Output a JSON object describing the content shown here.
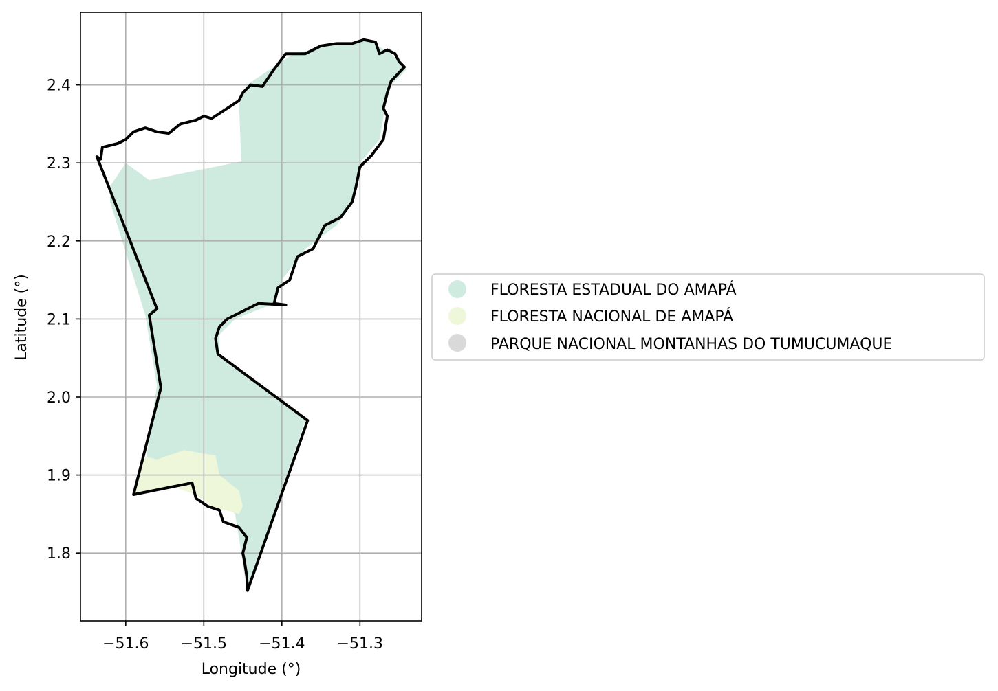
{
  "chart_data": {
    "type": "map",
    "xlabel": "Longitude (°)",
    "ylabel": "Latitude (°)",
    "xlim": [
      -51.658,
      -51.221
    ],
    "ylim": [
      1.713,
      2.493
    ],
    "xticks": [
      -51.6,
      -51.5,
      -51.4,
      -51.3
    ],
    "yticks": [
      1.8,
      1.9,
      2.0,
      2.1,
      2.2,
      2.3,
      2.4
    ],
    "xtick_labels": [
      "−51.6",
      "−51.5",
      "−51.4",
      "−51.3"
    ],
    "ytick_labels": [
      "1.8",
      "1.9",
      "2.0",
      "2.1",
      "2.2",
      "2.3",
      "2.4"
    ],
    "grid": true,
    "legend_position": "right",
    "legend": [
      {
        "label": "FLORESTA ESTADUAL DO AMAPÁ",
        "color": "#cfebdf"
      },
      {
        "label": "FLORESTA NACIONAL DE AMAPÁ",
        "color": "#eef7da"
      },
      {
        "label": "PARQUE NACIONAL MONTANHAS DO TUMUCUMAQUE",
        "color": "#d9d9d9"
      }
    ],
    "areas": [
      {
        "name": "FLORESTA ESTADUAL DO AMAPÁ",
        "color": "#cfebdf",
        "coords": [
          [
            -51.62,
            2.27
          ],
          [
            -51.6,
            2.3
          ],
          [
            -51.57,
            2.278
          ],
          [
            -51.452,
            2.302
          ],
          [
            -51.455,
            2.378
          ],
          [
            -51.445,
            2.4
          ],
          [
            -51.385,
            2.44
          ],
          [
            -51.34,
            2.45
          ],
          [
            -51.29,
            2.458
          ],
          [
            -51.26,
            2.44
          ],
          [
            -51.24,
            2.42
          ],
          [
            -51.26,
            2.4
          ],
          [
            -51.268,
            2.37
          ],
          [
            -51.275,
            2.33
          ],
          [
            -51.3,
            2.3
          ],
          [
            -51.31,
            2.25
          ],
          [
            -51.33,
            2.22
          ],
          [
            -51.37,
            2.19
          ],
          [
            -51.4,
            2.15
          ],
          [
            -51.41,
            2.12
          ],
          [
            -51.46,
            2.1
          ],
          [
            -51.48,
            2.08
          ],
          [
            -51.48,
            2.055
          ],
          [
            -51.37,
            1.97
          ],
          [
            -51.445,
            1.752
          ],
          [
            -51.455,
            1.82
          ],
          [
            -51.46,
            1.85
          ],
          [
            -51.49,
            1.88
          ],
          [
            -51.54,
            1.885
          ],
          [
            -51.58,
            1.878
          ],
          [
            -51.56,
            2.015
          ],
          [
            -51.575,
            2.105
          ],
          [
            -51.62,
            2.25
          ]
        ]
      },
      {
        "name": "FLORESTA NACIONAL DE AMAPÁ",
        "color": "#eef7da",
        "coords": [
          [
            -51.59,
            1.875
          ],
          [
            -51.58,
            1.925
          ],
          [
            -51.56,
            1.92
          ],
          [
            -51.525,
            1.932
          ],
          [
            -51.485,
            1.925
          ],
          [
            -51.48,
            1.9
          ],
          [
            -51.455,
            1.88
          ],
          [
            -51.45,
            1.86
          ],
          [
            -51.455,
            1.85
          ],
          [
            -51.49,
            1.86
          ],
          [
            -51.51,
            1.875
          ],
          [
            -51.54,
            1.885
          ]
        ]
      }
    ],
    "boundary": [
      [
        -51.637,
        2.308
      ],
      [
        -51.632,
        2.305
      ],
      [
        -51.63,
        2.32
      ],
      [
        -51.61,
        2.325
      ],
      [
        -51.6,
        2.33
      ],
      [
        -51.59,
        2.34
      ],
      [
        -51.575,
        2.345
      ],
      [
        -51.56,
        2.34
      ],
      [
        -51.545,
        2.338
      ],
      [
        -51.53,
        2.35
      ],
      [
        -51.51,
        2.355
      ],
      [
        -51.5,
        2.36
      ],
      [
        -51.49,
        2.357
      ],
      [
        -51.47,
        2.37
      ],
      [
        -51.455,
        2.38
      ],
      [
        -51.45,
        2.39
      ],
      [
        -51.44,
        2.4
      ],
      [
        -51.425,
        2.398
      ],
      [
        -51.41,
        2.42
      ],
      [
        -51.395,
        2.44
      ],
      [
        -51.37,
        2.44
      ],
      [
        -51.35,
        2.45
      ],
      [
        -51.33,
        2.453
      ],
      [
        -51.31,
        2.453
      ],
      [
        -51.295,
        2.458
      ],
      [
        -51.28,
        2.455
      ],
      [
        -51.275,
        2.44
      ],
      [
        -51.265,
        2.445
      ],
      [
        -51.255,
        2.44
      ],
      [
        -51.25,
        2.43
      ],
      [
        -51.243,
        2.423
      ],
      [
        -51.26,
        2.405
      ],
      [
        -51.265,
        2.39
      ],
      [
        -51.27,
        2.37
      ],
      [
        -51.265,
        2.36
      ],
      [
        -51.27,
        2.33
      ],
      [
        -51.285,
        2.31
      ],
      [
        -51.3,
        2.295
      ],
      [
        -51.305,
        2.27
      ],
      [
        -51.31,
        2.25
      ],
      [
        -51.325,
        2.23
      ],
      [
        -51.345,
        2.22
      ],
      [
        -51.36,
        2.19
      ],
      [
        -51.38,
        2.18
      ],
      [
        -51.39,
        2.15
      ],
      [
        -51.405,
        2.14
      ],
      [
        -51.41,
        2.12
      ],
      [
        -51.395,
        2.118
      ],
      [
        -51.43,
        2.12
      ],
      [
        -51.45,
        2.11
      ],
      [
        -51.47,
        2.1
      ],
      [
        -51.48,
        2.09
      ],
      [
        -51.485,
        2.075
      ],
      [
        -51.482,
        2.055
      ],
      [
        -51.367,
        1.97
      ],
      [
        -51.444,
        1.752
      ],
      [
        -51.445,
        1.77
      ],
      [
        -51.448,
        1.79
      ],
      [
        -51.45,
        1.8
      ],
      [
        -51.445,
        1.82
      ],
      [
        -51.455,
        1.833
      ],
      [
        -51.475,
        1.84
      ],
      [
        -51.48,
        1.855
      ],
      [
        -51.495,
        1.86
      ],
      [
        -51.51,
        1.87
      ],
      [
        -51.515,
        1.89
      ],
      [
        -51.59,
        1.875
      ],
      [
        -51.555,
        2.012
      ],
      [
        -51.57,
        2.105
      ],
      [
        -51.56,
        2.113
      ],
      [
        -51.637,
        2.308
      ]
    ]
  }
}
